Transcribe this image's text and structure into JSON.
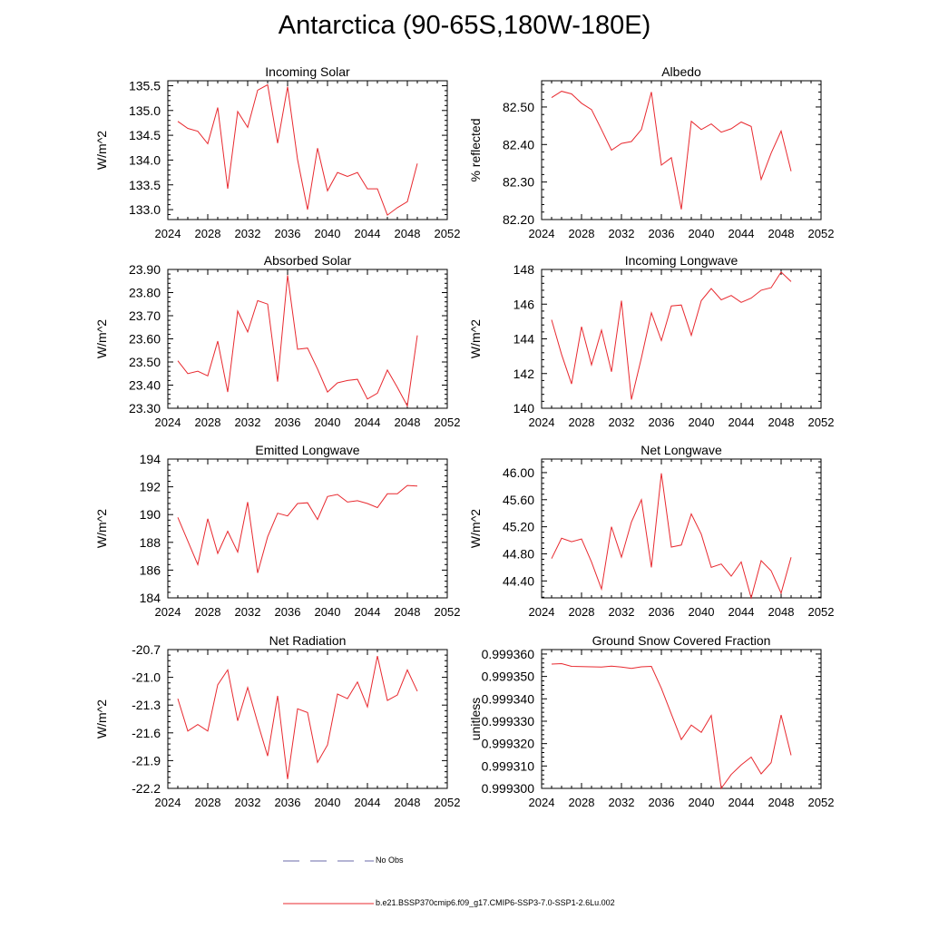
{
  "title": "Antarctica (90-65S,180W-180E)",
  "legend": [
    {
      "label": "No Obs",
      "style": "dashed",
      "color": "#6a6aaa"
    },
    {
      "label": "b.e21.BSSP370cmip6.f09_g17.CMIP6-SSP3-7.0-SSP1-2.6Lu.002",
      "style": "solid",
      "color": "#e8292f"
    }
  ],
  "colors": {
    "series": "#e8292f",
    "axis": "#000000"
  },
  "chart_data": [
    {
      "type": "line",
      "title": "Incoming Solar",
      "ylabel": "W/m^2",
      "xlim": [
        2024,
        2052
      ],
      "ylim": [
        132.8,
        135.6
      ],
      "xticks": [
        2024,
        2028,
        2032,
        2036,
        2040,
        2044,
        2048,
        2052
      ],
      "xtick_labels": [
        "2024",
        "2028",
        "2032",
        "2036",
        "2040",
        "2044",
        "2048",
        "2052"
      ],
      "yticks": [
        133.0,
        133.5,
        134.0,
        134.5,
        135.0,
        135.5
      ],
      "ytick_labels": [
        "133.0",
        "133.5",
        "134.0",
        "134.5",
        "135.0",
        "135.5"
      ],
      "x": [
        2025,
        2026,
        2027,
        2028,
        2029,
        2030,
        2031,
        2032,
        2033,
        2034,
        2035,
        2036,
        2037,
        2038,
        2039,
        2040,
        2041,
        2042,
        2043,
        2044,
        2045,
        2046,
        2047,
        2048,
        2049
      ],
      "series": [
        {
          "name": "b.e21.BSSP370cmip6.f09_g17.CMIP6-SSP3-7.0-SSP1-2.6Lu.002",
          "values": [
            134.78,
            134.64,
            134.58,
            134.33,
            135.06,
            133.42,
            134.98,
            134.66,
            135.41,
            135.52,
            134.34,
            135.48,
            134.01,
            133.0,
            134.24,
            133.38,
            133.75,
            133.67,
            133.75,
            133.42,
            133.42,
            132.89,
            133.04,
            133.16,
            133.93
          ]
        }
      ]
    },
    {
      "type": "line",
      "title": "Albedo",
      "ylabel": "% reflected",
      "xlim": [
        2024,
        2052
      ],
      "ylim": [
        82.2,
        82.57
      ],
      "xticks": [
        2024,
        2028,
        2032,
        2036,
        2040,
        2044,
        2048,
        2052
      ],
      "xtick_labels": [
        "2024",
        "2028",
        "2032",
        "2036",
        "2040",
        "2044",
        "2048",
        "2052"
      ],
      "yticks": [
        82.2,
        82.3,
        82.4,
        82.5
      ],
      "ytick_labels": [
        "82.20",
        "82.30",
        "82.40",
        "82.50"
      ],
      "x": [
        2025,
        2026,
        2027,
        2028,
        2029,
        2030,
        2031,
        2032,
        2033,
        2034,
        2035,
        2036,
        2037,
        2038,
        2039,
        2040,
        2041,
        2042,
        2043,
        2044,
        2045,
        2046,
        2047,
        2048,
        2049
      ],
      "series": [
        {
          "name": "b.e21.BSSP370cmip6.f09_g17.CMIP6-SSP3-7.0-SSP1-2.6Lu.002",
          "values": [
            82.525,
            82.542,
            82.535,
            82.51,
            82.493,
            82.44,
            82.385,
            82.403,
            82.408,
            82.44,
            82.54,
            82.345,
            82.365,
            82.227,
            82.462,
            82.44,
            82.455,
            82.433,
            82.442,
            82.46,
            82.448,
            82.307,
            82.377,
            82.436,
            82.329
          ]
        }
      ]
    },
    {
      "type": "line",
      "title": "Absorbed Solar",
      "ylabel": "W/m^2",
      "xlim": [
        2024,
        2052
      ],
      "ylim": [
        23.3,
        23.9
      ],
      "xticks": [
        2024,
        2028,
        2032,
        2036,
        2040,
        2044,
        2048,
        2052
      ],
      "xtick_labels": [
        "2024",
        "2028",
        "2032",
        "2036",
        "2040",
        "2044",
        "2048",
        "2052"
      ],
      "yticks": [
        23.3,
        23.4,
        23.5,
        23.6,
        23.7,
        23.8,
        23.9
      ],
      "ytick_labels": [
        "23.30",
        "23.40",
        "23.50",
        "23.60",
        "23.70",
        "23.80",
        "23.90"
      ],
      "x": [
        2025,
        2026,
        2027,
        2028,
        2029,
        2030,
        2031,
        2032,
        2033,
        2034,
        2035,
        2036,
        2037,
        2038,
        2039,
        2040,
        2041,
        2042,
        2043,
        2044,
        2045,
        2046,
        2047,
        2048,
        2049
      ],
      "series": [
        {
          "name": "b.e21.BSSP370cmip6.f09_g17.CMIP6-SSP3-7.0-SSP1-2.6Lu.002",
          "values": [
            23.505,
            23.45,
            23.46,
            23.44,
            23.59,
            23.37,
            23.72,
            23.63,
            23.765,
            23.75,
            23.415,
            23.875,
            23.555,
            23.56,
            23.47,
            23.37,
            23.41,
            23.42,
            23.425,
            23.34,
            23.365,
            23.465,
            23.39,
            23.31,
            23.615
          ]
        }
      ]
    },
    {
      "type": "line",
      "title": "Incoming Longwave",
      "ylabel": "W/m^2",
      "xlim": [
        2024,
        2052
      ],
      "ylim": [
        140,
        148
      ],
      "xticks": [
        2024,
        2028,
        2032,
        2036,
        2040,
        2044,
        2048,
        2052
      ],
      "xtick_labels": [
        "2024",
        "2028",
        "2032",
        "2036",
        "2040",
        "2044",
        "2048",
        "2052"
      ],
      "yticks": [
        140,
        142,
        144,
        146,
        148
      ],
      "ytick_labels": [
        "140",
        "142",
        "144",
        "146",
        "148"
      ],
      "x": [
        2025,
        2026,
        2027,
        2028,
        2029,
        2030,
        2031,
        2032,
        2033,
        2034,
        2035,
        2036,
        2037,
        2038,
        2039,
        2040,
        2041,
        2042,
        2043,
        2044,
        2045,
        2046,
        2047,
        2048,
        2049
      ],
      "series": [
        {
          "name": "b.e21.BSSP370cmip6.f09_g17.CMIP6-SSP3-7.0-SSP1-2.6Lu.002",
          "values": [
            145.1,
            143.1,
            141.4,
            144.7,
            142.5,
            144.5,
            142.1,
            146.2,
            140.5,
            142.9,
            145.5,
            143.9,
            145.9,
            145.95,
            144.2,
            146.2,
            146.9,
            146.25,
            146.5,
            146.1,
            146.35,
            146.8,
            146.95,
            147.85,
            147.3
          ]
        }
      ]
    },
    {
      "type": "line",
      "title": "Emitted Longwave",
      "ylabel": "W/m^2",
      "xlim": [
        2024,
        2052
      ],
      "ylim": [
        184,
        194
      ],
      "xticks": [
        2024,
        2028,
        2032,
        2036,
        2040,
        2044,
        2048,
        2052
      ],
      "xtick_labels": [
        "2024",
        "2028",
        "2032",
        "2036",
        "2040",
        "2044",
        "2048",
        "2052"
      ],
      "yticks": [
        184,
        186,
        188,
        190,
        192,
        194
      ],
      "ytick_labels": [
        "184",
        "186",
        "188",
        "190",
        "192",
        "194"
      ],
      "x": [
        2025,
        2026,
        2027,
        2028,
        2029,
        2030,
        2031,
        2032,
        2033,
        2034,
        2035,
        2036,
        2037,
        2038,
        2039,
        2040,
        2041,
        2042,
        2043,
        2044,
        2045,
        2046,
        2047,
        2048,
        2049
      ],
      "series": [
        {
          "name": "b.e21.BSSP370cmip6.f09_g17.CMIP6-SSP3-7.0-SSP1-2.6Lu.002",
          "values": [
            189.8,
            188.1,
            186.4,
            189.7,
            187.2,
            188.8,
            187.3,
            190.9,
            185.8,
            188.4,
            190.1,
            189.9,
            190.8,
            190.85,
            189.65,
            191.3,
            191.45,
            190.9,
            191.0,
            190.8,
            190.5,
            191.5,
            191.5,
            192.1,
            192.05
          ]
        }
      ]
    },
    {
      "type": "line",
      "title": "Net Longwave",
      "ylabel": "W/m^2",
      "xlim": [
        2024,
        2052
      ],
      "ylim": [
        44.15,
        46.2
      ],
      "xticks": [
        2024,
        2028,
        2032,
        2036,
        2040,
        2044,
        2048,
        2052
      ],
      "xtick_labels": [
        "2024",
        "2028",
        "2032",
        "2036",
        "2040",
        "2044",
        "2048",
        "2052"
      ],
      "yticks": [
        44.4,
        44.8,
        45.2,
        45.6,
        46.0
      ],
      "ytick_labels": [
        "44.40",
        "44.80",
        "45.20",
        "45.60",
        "46.00"
      ],
      "x": [
        2025,
        2026,
        2027,
        2028,
        2029,
        2030,
        2031,
        2032,
        2033,
        2034,
        2035,
        2036,
        2037,
        2038,
        2039,
        2040,
        2041,
        2042,
        2043,
        2044,
        2045,
        2046,
        2047,
        2048,
        2049
      ],
      "series": [
        {
          "name": "b.e21.BSSP370cmip6.f09_g17.CMIP6-SSP3-7.0-SSP1-2.6Lu.002",
          "values": [
            44.73,
            45.03,
            44.98,
            45.02,
            44.68,
            44.28,
            45.2,
            44.75,
            45.27,
            45.6,
            44.6,
            45.99,
            44.9,
            44.93,
            45.39,
            45.09,
            44.6,
            44.65,
            44.47,
            44.68,
            44.15,
            44.7,
            44.55,
            44.22,
            44.75
          ]
        }
      ]
    },
    {
      "type": "line",
      "title": "Net Radiation",
      "ylabel": "W/m^2",
      "xlim": [
        2024,
        2052
      ],
      "ylim": [
        -22.2,
        -20.7
      ],
      "xticks": [
        2024,
        2028,
        2032,
        2036,
        2040,
        2044,
        2048,
        2052
      ],
      "xtick_labels": [
        "2024",
        "2028",
        "2032",
        "2036",
        "2040",
        "2044",
        "2048",
        "2052"
      ],
      "yticks": [
        -22.2,
        -21.9,
        -21.6,
        -21.3,
        -21.0,
        -20.7
      ],
      "ytick_labels": [
        "-22.2",
        "-21.9",
        "-21.6",
        "-21.3",
        "-21.0",
        "-20.7"
      ],
      "x": [
        2025,
        2026,
        2027,
        2028,
        2029,
        2030,
        2031,
        2032,
        2033,
        2034,
        2035,
        2036,
        2037,
        2038,
        2039,
        2040,
        2041,
        2042,
        2043,
        2044,
        2045,
        2046,
        2047,
        2048,
        2049
      ],
      "series": [
        {
          "name": "b.e21.BSSP370cmip6.f09_g17.CMIP6-SSP3-7.0-SSP1-2.6Lu.002",
          "values": [
            -21.23,
            -21.58,
            -21.51,
            -21.58,
            -21.08,
            -20.92,
            -21.47,
            -21.11,
            -21.49,
            -21.85,
            -21.2,
            -22.1,
            -21.34,
            -21.38,
            -21.92,
            -21.73,
            -21.18,
            -21.23,
            -21.05,
            -21.32,
            -20.77,
            -21.25,
            -21.19,
            -20.92,
            -21.15
          ]
        }
      ]
    },
    {
      "type": "line",
      "title": "Ground Snow Covered Fraction",
      "ylabel": "unitless",
      "xlim": [
        2024,
        2052
      ],
      "ylim": [
        0.9993,
        0.999362
      ],
      "xticks": [
        2024,
        2028,
        2032,
        2036,
        2040,
        2044,
        2048,
        2052
      ],
      "xtick_labels": [
        "2024",
        "2028",
        "2032",
        "2036",
        "2040",
        "2044",
        "2048",
        "2052"
      ],
      "yticks": [
        0.9993,
        0.99931,
        0.99932,
        0.99933,
        0.99934,
        0.99935,
        0.99936
      ],
      "ytick_labels": [
        "0.999300",
        "0.999310",
        "0.999320",
        "0.999330",
        "0.999340",
        "0.999350",
        "0.999360"
      ],
      "x": [
        2025,
        2026,
        2027,
        2028,
        2029,
        2030,
        2031,
        2032,
        2033,
        2034,
        2035,
        2036,
        2037,
        2038,
        2039,
        2040,
        2041,
        2042,
        2043,
        2044,
        2045,
        2046,
        2047,
        2048,
        2049
      ],
      "series": [
        {
          "name": "b.e21.BSSP370cmip6.f09_g17.CMIP6-SSP3-7.0-SSP1-2.6Lu.002",
          "values": [
            0.9993555,
            0.9993557,
            0.9993545,
            0.9993544,
            0.9993543,
            0.9993542,
            0.9993546,
            0.9993542,
            0.9993536,
            0.9993543,
            0.9993545,
            0.9993447,
            0.9993332,
            0.9993218,
            0.9993283,
            0.999325,
            0.9993326,
            0.9993,
            0.9993062,
            0.9993105,
            0.999314,
            0.9993065,
            0.9993115,
            0.9993328,
            0.9993148
          ]
        }
      ]
    }
  ]
}
